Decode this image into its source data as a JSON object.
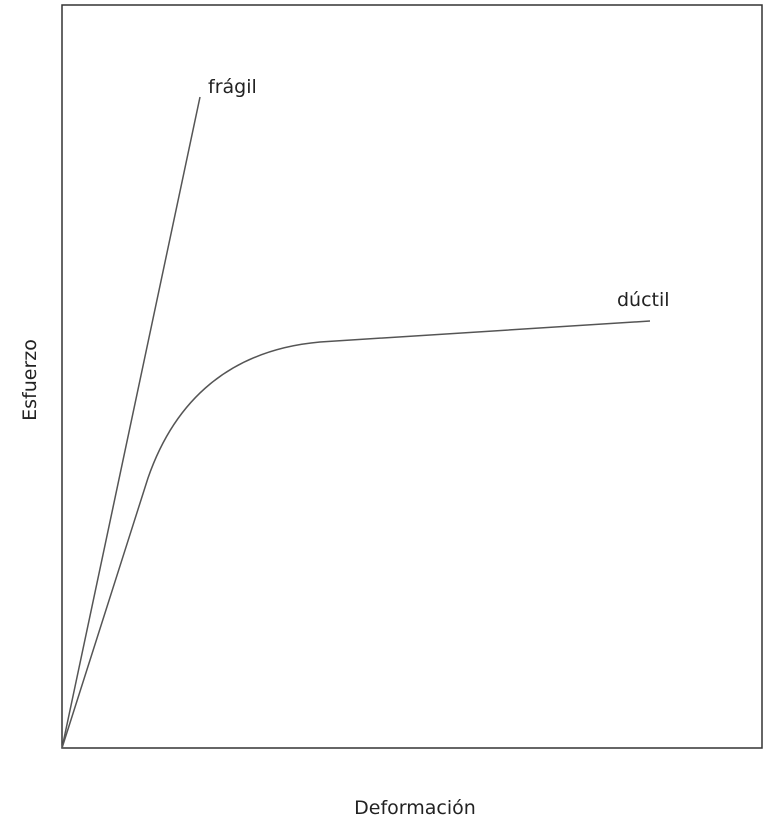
{
  "curves": [
    {
      "label": "frágil"
    },
    {
      "label": "dúctil"
    }
  ],
  "axes": {
    "x_label": "Deformación",
    "y_label": "Esfuerzo"
  }
}
